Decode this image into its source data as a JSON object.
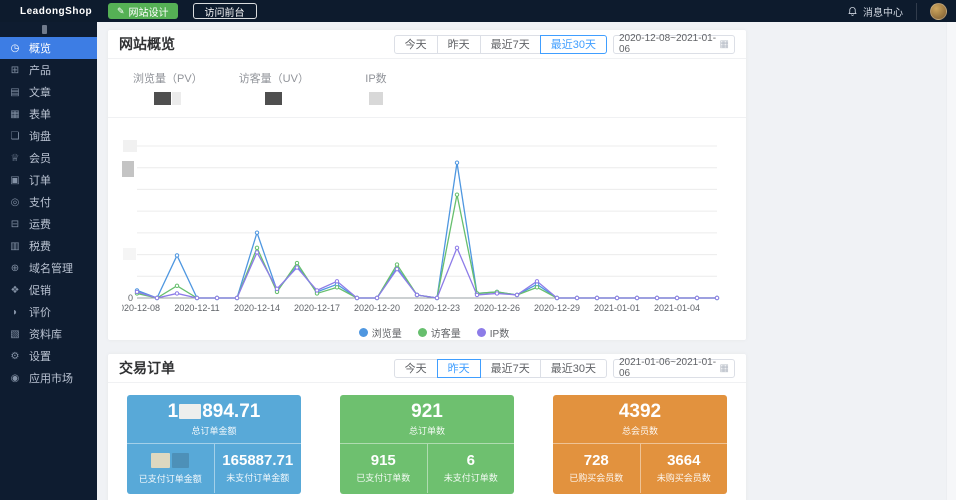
{
  "header": {
    "logo": "LeadongShop",
    "design_button": "网站设计",
    "design_icon": "✎",
    "visit_button": "访问前台",
    "messages_label": "消息中心"
  },
  "sidebar": {
    "items": [
      {
        "name": "overview",
        "label": "概览",
        "icon": "◷",
        "selected": true
      },
      {
        "name": "products",
        "label": "产品",
        "icon": "⊞",
        "selected": false
      },
      {
        "name": "articles",
        "label": "文章",
        "icon": "▤",
        "selected": false
      },
      {
        "name": "forms",
        "label": "表单",
        "icon": "▦",
        "selected": false
      },
      {
        "name": "inquiries",
        "label": "询盘",
        "icon": "❏",
        "selected": false
      },
      {
        "name": "members",
        "label": "会员",
        "icon": "♕",
        "selected": false
      },
      {
        "name": "orders",
        "label": "订单",
        "icon": "▣",
        "selected": false
      },
      {
        "name": "payments",
        "label": "支付",
        "icon": "◎",
        "selected": false
      },
      {
        "name": "shipping",
        "label": "运费",
        "icon": "⊟",
        "selected": false
      },
      {
        "name": "taxes",
        "label": "税费",
        "icon": "▥",
        "selected": false
      },
      {
        "name": "domains",
        "label": "域名管理",
        "icon": "⊕",
        "selected": false
      },
      {
        "name": "promotions",
        "label": "促销",
        "icon": "❖",
        "selected": false
      },
      {
        "name": "reviews",
        "label": "评价",
        "icon": "◗",
        "selected": false
      },
      {
        "name": "library",
        "label": "资料库",
        "icon": "▧",
        "selected": false
      },
      {
        "name": "settings",
        "label": "设置",
        "icon": "⚙",
        "selected": false
      },
      {
        "name": "app-market",
        "label": "应用市场",
        "icon": "◉",
        "selected": false
      }
    ]
  },
  "overview": {
    "title": "网站概览",
    "filters": [
      "今天",
      "昨天",
      "最近7天",
      "最近30天"
    ],
    "selected_filter": "最近30天",
    "date_range": "2020-12-08~2021-01-06",
    "calendar_icon": "▦",
    "stats": [
      {
        "label": "浏览量（PV）",
        "value": "[redacted]"
      },
      {
        "label": "访客量（UV）",
        "value": "[redacted]"
      },
      {
        "label": "IP数",
        "value": "[redacted]"
      }
    ]
  },
  "chart_data": {
    "type": "line",
    "title": "",
    "xlabel": "",
    "ylabel": "",
    "grid": true,
    "legend_position": "bottom",
    "ylim": [
      0,
      100
    ],
    "y_origin_label": "0",
    "y_ticks_redacted": true,
    "x": [
      "2020-12-08",
      "2020-12-09",
      "2020-12-10",
      "2020-12-11",
      "2020-12-12",
      "2020-12-13",
      "2020-12-14",
      "2020-12-15",
      "2020-12-16",
      "2020-12-17",
      "2020-12-18",
      "2020-12-19",
      "2020-12-20",
      "2020-12-21",
      "2020-12-22",
      "2020-12-23",
      "2020-12-24",
      "2020-12-25",
      "2020-12-26",
      "2020-12-27",
      "2020-12-28",
      "2020-12-29",
      "2020-12-30",
      "2020-12-31",
      "2021-01-01",
      "2021-01-02",
      "2021-01-03",
      "2021-01-04",
      "2021-01-05",
      "2021-01-06"
    ],
    "x_tick_every": 3,
    "series": [
      {
        "name": "浏览量",
        "color": "#4f97e0",
        "values": [
          5,
          0,
          28,
          0,
          0,
          0,
          43,
          5,
          21,
          4,
          9,
          0,
          0,
          20,
          2,
          0,
          89,
          3,
          4,
          2,
          9,
          0,
          0,
          0,
          0,
          0,
          0,
          0,
          0,
          0
        ]
      },
      {
        "name": "访客量",
        "color": "#67bf6e",
        "values": [
          3,
          0,
          8,
          0,
          0,
          0,
          33,
          4,
          23,
          3,
          7,
          0,
          0,
          22,
          2,
          0,
          68,
          3,
          4,
          2,
          7,
          0,
          0,
          0,
          0,
          0,
          0,
          0,
          0,
          0
        ]
      },
      {
        "name": "IP数",
        "color": "#8d7ce8",
        "values": [
          4,
          0,
          3,
          0,
          0,
          0,
          30,
          6,
          20,
          5,
          11,
          0,
          0,
          19,
          2,
          0,
          33,
          2,
          3,
          2,
          11,
          0,
          0,
          0,
          0,
          0,
          0,
          0,
          0,
          0
        ]
      }
    ]
  },
  "orders": {
    "title": "交易订单",
    "filters": [
      "今天",
      "昨天",
      "最近7天",
      "最近30天"
    ],
    "selected_filter": "昨天",
    "date_range": "2021-01-06~2021-01-06",
    "calendar_icon": "▦",
    "cards": [
      {
        "color": "#58a9d8",
        "top": {
          "prefix": "1",
          "suffix": "894.71",
          "redacted_middle": true,
          "label": "总订单金额"
        },
        "left": {
          "value": "[redacted]",
          "label": "已支付订单金额"
        },
        "right": {
          "value": "165887.71",
          "label": "未支付订单金额"
        }
      },
      {
        "color": "#6ec06f",
        "top": {
          "value": "921",
          "label": "总订单数"
        },
        "left": {
          "value": "915",
          "label": "已支付订单数"
        },
        "right": {
          "value": "6",
          "label": "未支付订单数"
        }
      },
      {
        "color": "#e2923e",
        "top": {
          "value": "4392",
          "label": "总会员数"
        },
        "left": {
          "value": "728",
          "label": "已购买会员数"
        },
        "right": {
          "value": "3664",
          "label": "未购买会员数"
        }
      }
    ]
  }
}
